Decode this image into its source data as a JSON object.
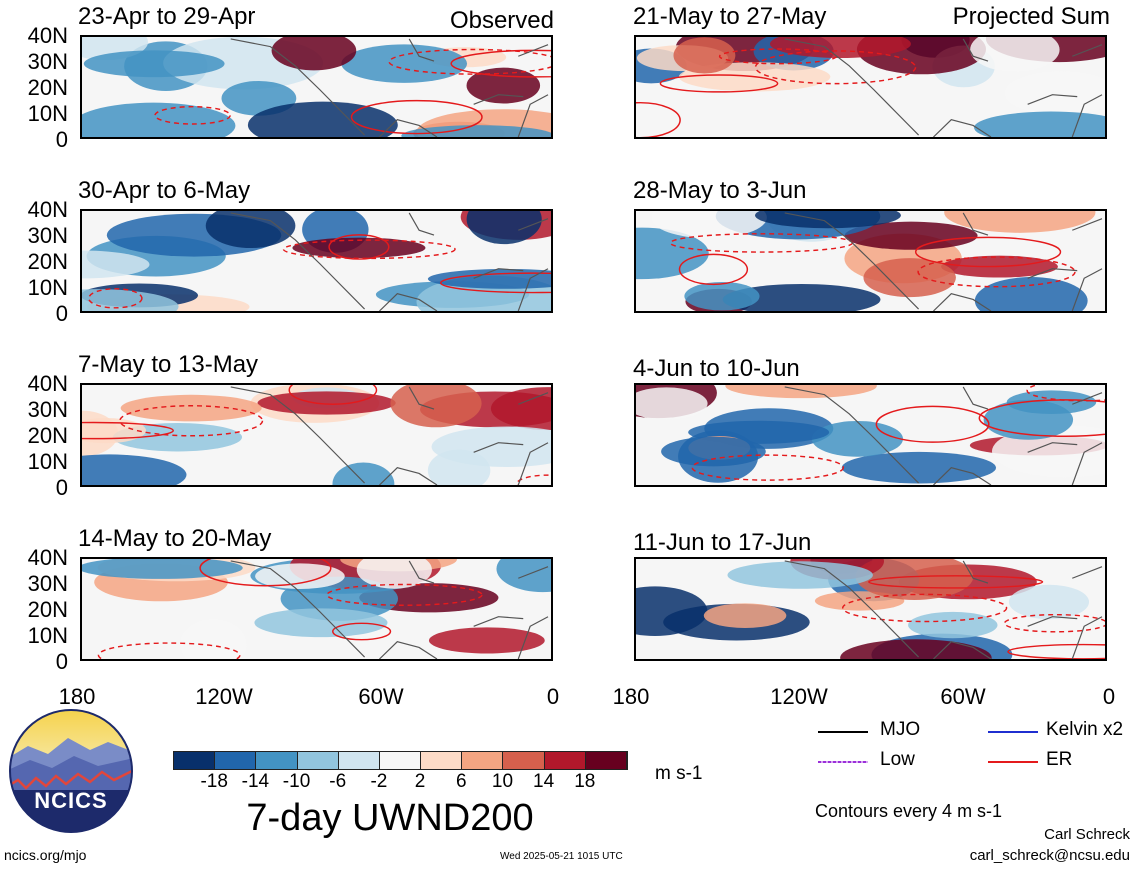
{
  "panels": [
    {
      "title": "23-Apr to 29-Apr",
      "tag": "Observed"
    },
    {
      "title": "21-May to 27-May",
      "tag": "Projected Sum"
    },
    {
      "title": "30-Apr to 6-May",
      "tag": ""
    },
    {
      "title": "28-May to 3-Jun",
      "tag": ""
    },
    {
      "title": "7-May to 13-May",
      "tag": ""
    },
    {
      "title": "4-Jun to 10-Jun",
      "tag": ""
    },
    {
      "title": "14-May to 20-May",
      "tag": ""
    },
    {
      "title": "11-Jun to 17-Jun",
      "tag": ""
    }
  ],
  "y_ticks": [
    "40N",
    "30N",
    "20N",
    "10N",
    "0"
  ],
  "x_ticks": [
    "180",
    "120W",
    "60W",
    "0"
  ],
  "colorbar": {
    "colors": [
      "#08306b",
      "#2166ac",
      "#4393c3",
      "#92c5de",
      "#d1e5f0",
      "#f7f7f7",
      "#fddbc7",
      "#f4a582",
      "#d6604d",
      "#b2182b",
      "#67001f"
    ],
    "ticks": [
      "-18",
      "-14",
      "-10",
      "-6",
      "-2",
      "2",
      "6",
      "10",
      "14",
      "18"
    ],
    "units": "m s-1"
  },
  "main_title": "7-day UWND200",
  "legend": {
    "mjo": {
      "label": "MJO",
      "color": "#000000"
    },
    "kelvin": {
      "label": "Kelvin x2",
      "color": "#1f2fd0"
    },
    "low": {
      "label": "Low",
      "color": "#9b30d9"
    },
    "er": {
      "label": "ER",
      "color": "#e41a1c"
    }
  },
  "contours_note": "Contours every 4 m s-1",
  "logo_text": "NCICS",
  "site": "ncics.org/mjo",
  "timestamp": "Wed 2025-05-21 1015 UTC",
  "author": "Carl Schreck",
  "email": "carl_schreck@ncsu.edu"
}
